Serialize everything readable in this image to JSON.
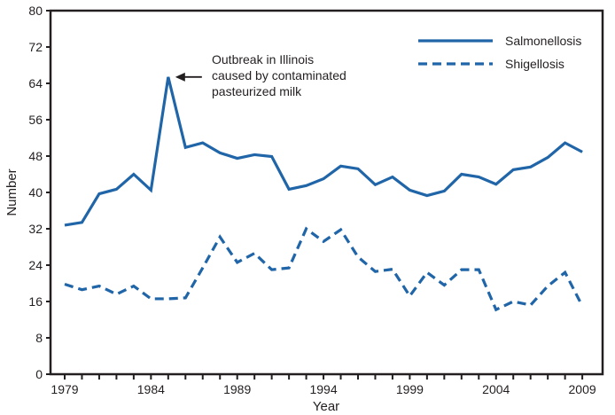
{
  "chart_data": {
    "type": "line",
    "title": "",
    "xlabel": "Year",
    "ylabel": "Number",
    "xlim": [
      1978.2,
      2010.7
    ],
    "ylim": [
      0,
      80
    ],
    "yticks": [
      0,
      8,
      16,
      24,
      32,
      40,
      48,
      56,
      64,
      72,
      80
    ],
    "xtick_labels": [
      1979,
      1984,
      1989,
      1994,
      1999,
      2004,
      2009
    ],
    "grid": false,
    "legend": "top-right",
    "x": [
      1979,
      1980,
      1981,
      1982,
      1983,
      1984,
      1985,
      1986,
      1987,
      1988,
      1989,
      1990,
      1991,
      1992,
      1993,
      1994,
      1995,
      1996,
      1997,
      1998,
      1999,
      2000,
      2001,
      2002,
      2003,
      2004,
      2005,
      2006,
      2007,
      2008,
      2009
    ],
    "series": [
      {
        "name": "Salmonellosis",
        "style": "solid",
        "color": "#1f65a8",
        "values": [
          32.8,
          33.4,
          39.7,
          40.7,
          44.0,
          40.5,
          65.4,
          49.9,
          50.9,
          48.7,
          47.5,
          48.3,
          47.9,
          40.7,
          41.5,
          43.0,
          45.8,
          45.2,
          41.7,
          43.4,
          40.5,
          39.3,
          40.3,
          44.0,
          43.4,
          41.8,
          45.0,
          45.6,
          47.7,
          50.9,
          48.9
        ]
      },
      {
        "name": "Shigellosis",
        "style": "dashed",
        "color": "#1f65a8",
        "values": [
          19.8,
          18.6,
          19.4,
          17.6,
          19.4,
          16.6,
          16.6,
          16.8,
          23.4,
          30.2,
          24.6,
          26.6,
          23.0,
          23.4,
          32.0,
          29.2,
          31.8,
          25.8,
          22.6,
          23.1,
          17.2,
          22.4,
          19.6,
          23.0,
          23.0,
          14.2,
          16.0,
          15.2,
          19.4,
          22.4,
          15.0
        ]
      }
    ],
    "annotation": {
      "lines": [
        "Outbreak in Illinois",
        "caused by contaminated",
        "pasteurized milk"
      ],
      "x": 1985,
      "y": 65.4
    }
  }
}
